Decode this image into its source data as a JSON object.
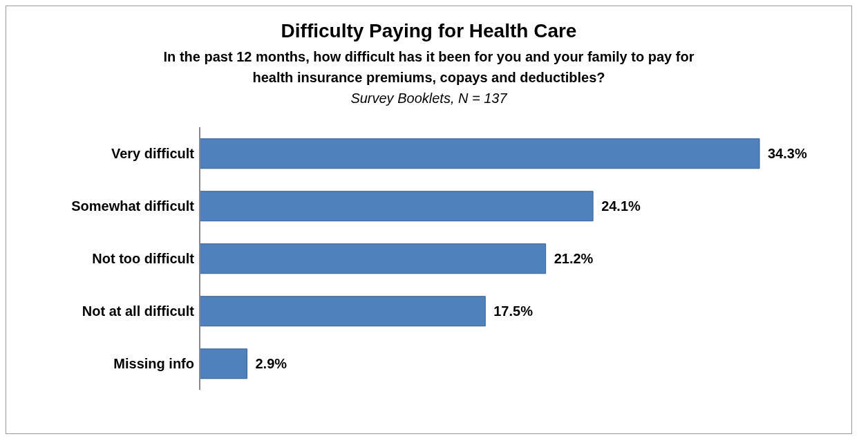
{
  "chart_data": {
    "type": "bar",
    "orientation": "horizontal",
    "title": "Difficulty Paying for Health Care",
    "subtitle": "In the past 12 months, how difficult has it been for you and your family to pay for health insurance premiums, copays and deductibles?",
    "annotations": [
      "Survey Booklets, N = 137"
    ],
    "categories": [
      "Very difficult",
      "Somewhat difficult",
      "Not too difficult",
      "Not at all difficult",
      "Missing info"
    ],
    "values": [
      34.3,
      24.1,
      21.2,
      17.5,
      2.9
    ],
    "value_labels": [
      "34.3%",
      "24.1%",
      "21.2%",
      "17.5%",
      "2.9%"
    ],
    "color": "#4f81bd"
  }
}
